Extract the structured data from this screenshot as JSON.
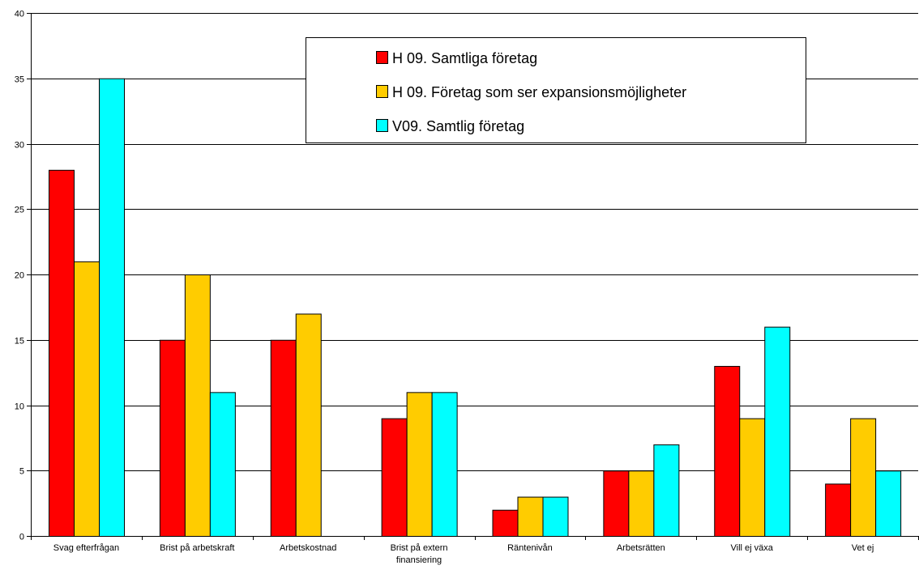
{
  "chart_data": {
    "type": "bar",
    "title": "",
    "xlabel": "",
    "ylabel": "",
    "ylim": [
      0,
      40
    ],
    "yticks": [
      0,
      5,
      10,
      15,
      20,
      25,
      30,
      35,
      40
    ],
    "grid": true,
    "legend_position": "top-center",
    "categories": [
      "Svag efterfrågan",
      "Brist på arbetskraft",
      "Arbetskostnad",
      "Brist på extern finansiering",
      "Räntenivån",
      "Arbetsrätten",
      "Vill ej växa",
      "Vet ej"
    ],
    "series": [
      {
        "name": "H 09. Samtliga företag",
        "color": "#ff0000",
        "values": [
          28,
          15,
          15,
          9,
          2,
          5,
          13,
          4
        ]
      },
      {
        "name": "H 09. Företag som ser expansionsmöjligheter",
        "color": "#ffcc00",
        "values": [
          21,
          20,
          17,
          11,
          3,
          5,
          9,
          9
        ]
      },
      {
        "name": "V09. Samtlig företag",
        "color": "#00ffff",
        "values": [
          35,
          11,
          null,
          11,
          3,
          7,
          16,
          5
        ]
      }
    ]
  }
}
